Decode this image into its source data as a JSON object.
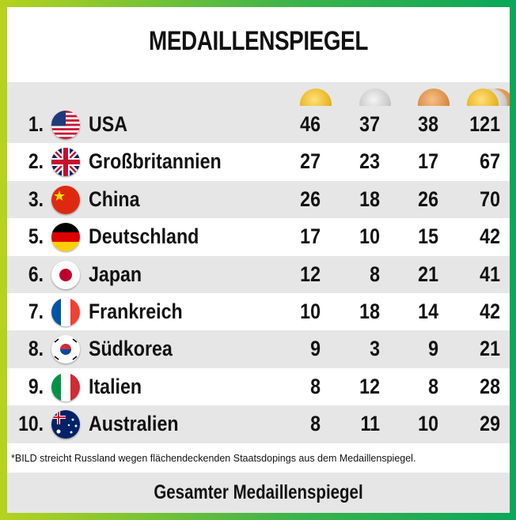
{
  "title": "MEDAILLENSPIEGEL",
  "medal_icons": [
    "gold-medal-icon",
    "silver-medal-icon",
    "bronze-medal-icon",
    "total-medals-icon"
  ],
  "colors": {
    "frame_left": "#b6d21e",
    "frame_right": "#0aa75a",
    "row_shade": "#e6e6e6"
  },
  "rows": [
    {
      "rank": "1.",
      "flag": "usa-flag-icon",
      "country": "USA",
      "gold": "46",
      "silver": "37",
      "bronze": "38",
      "total": "121"
    },
    {
      "rank": "2.",
      "flag": "uk-flag-icon",
      "country": "Großbritannien",
      "gold": "27",
      "silver": "23",
      "bronze": "17",
      "total": "67"
    },
    {
      "rank": "3.",
      "flag": "china-flag-icon",
      "country": "China",
      "gold": "26",
      "silver": "18",
      "bronze": "26",
      "total": "70"
    },
    {
      "rank": "5.",
      "flag": "germany-flag-icon",
      "country": "Deutschland",
      "gold": "17",
      "silver": "10",
      "bronze": "15",
      "total": "42"
    },
    {
      "rank": "6.",
      "flag": "japan-flag-icon",
      "country": "Japan",
      "gold": "12",
      "silver": "8",
      "bronze": "21",
      "total": "41"
    },
    {
      "rank": "7.",
      "flag": "france-flag-icon",
      "country": "Frankreich",
      "gold": "10",
      "silver": "18",
      "bronze": "14",
      "total": "42"
    },
    {
      "rank": "8.",
      "flag": "south-korea-flag-icon",
      "country": "Südkorea",
      "gold": "9",
      "silver": "3",
      "bronze": "9",
      "total": "21"
    },
    {
      "rank": "9.",
      "flag": "italy-flag-icon",
      "country": "Italien",
      "gold": "8",
      "silver": "12",
      "bronze": "8",
      "total": "28"
    },
    {
      "rank": "10.",
      "flag": "australia-flag-icon",
      "country": "Australien",
      "gold": "8",
      "silver": "11",
      "bronze": "10",
      "total": "29"
    }
  ],
  "footnote": "*BILD streicht Russland wegen flächendeckenden Staatsdopings aus dem Medaillenspiegel.",
  "bottom_link": "Gesamter Medaillenspiegel"
}
